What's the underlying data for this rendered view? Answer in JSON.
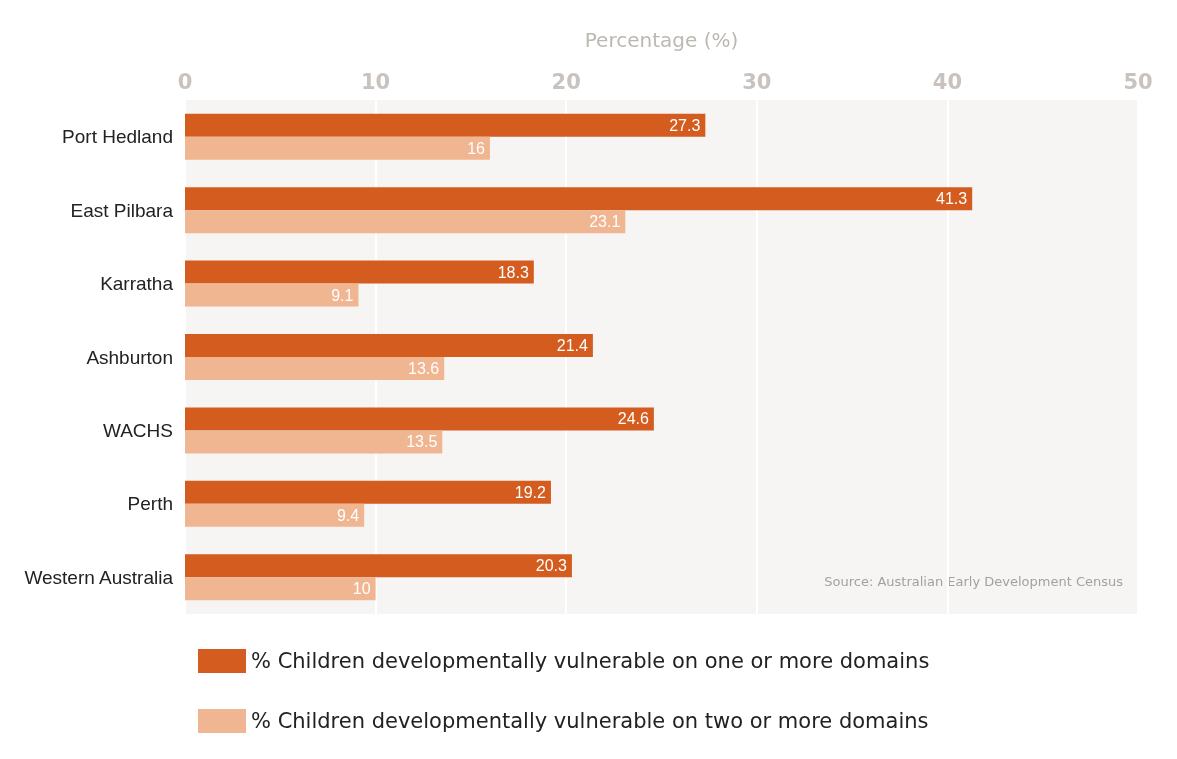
{
  "chart_data": {
    "type": "bar",
    "orientation": "horizontal",
    "xlabel": "Percentage (%)",
    "categories": [
      "Port Hedland",
      "East Pilbara",
      "Karratha",
      "Ashburton",
      "WACHS",
      "Perth",
      "Western Australia"
    ],
    "series": [
      {
        "name": "% Children developmentally vulnerable on one or more domains",
        "color": "#d35c1e",
        "values": [
          27.3,
          41.3,
          18.3,
          21.4,
          24.6,
          19.2,
          20.3
        ]
      },
      {
        "name": "% Children developmentally vulnerable on two or more domains",
        "color": "#f0b591",
        "values": [
          16,
          23.1,
          9.1,
          13.6,
          13.5,
          9.4,
          10
        ]
      }
    ],
    "xlim": [
      0,
      50
    ],
    "xticks": [
      0,
      10,
      20,
      30,
      40,
      50
    ],
    "grid": "x",
    "legend": "bottom",
    "data_labels": true,
    "annotations": [
      "Source: Australian Early Development Census"
    ]
  }
}
